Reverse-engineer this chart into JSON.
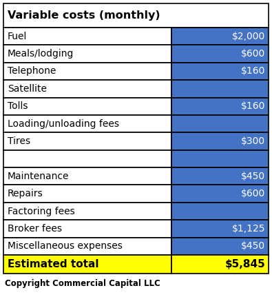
{
  "title": "Variable costs (monthly)",
  "rows": [
    {
      "label": "Fuel",
      "value": "$2,000"
    },
    {
      "label": "Meals/lodging",
      "value": "$600"
    },
    {
      "label": "Telephone",
      "value": "$160"
    },
    {
      "label": "Satellite",
      "value": ""
    },
    {
      "label": "Tolls",
      "value": "$160"
    },
    {
      "label": "Loading/unloading fees",
      "value": ""
    },
    {
      "label": "Tires",
      "value": "$300"
    },
    {
      "label": "",
      "value": ""
    },
    {
      "label": "Maintenance",
      "value": "$450"
    },
    {
      "label": "Repairs",
      "value": "$600"
    },
    {
      "label": "Factoring fees",
      "value": ""
    },
    {
      "label": "Broker fees",
      "value": "$1,125"
    },
    {
      "label": "Miscellaneous expenses",
      "value": "$450"
    }
  ],
  "total_label": "Estimated total",
  "total_value": "$5,845",
  "footer": "Copyright Commercial Capital LLC",
  "header_bg": "#ffffff",
  "header_text_color": "#000000",
  "row_left_bg": "#ffffff",
  "row_right_bg": "#4472c4",
  "row_text_color": "#000000",
  "row_right_text_color": "#ffffff",
  "total_bg_left": "#ffff00",
  "total_bg_right": "#ffff00",
  "total_text_color": "#000000",
  "border_color": "#000000",
  "col_split": 0.635,
  "title_fontsize": 11.5,
  "row_fontsize": 10,
  "total_fontsize": 11,
  "footer_fontsize": 8.5
}
